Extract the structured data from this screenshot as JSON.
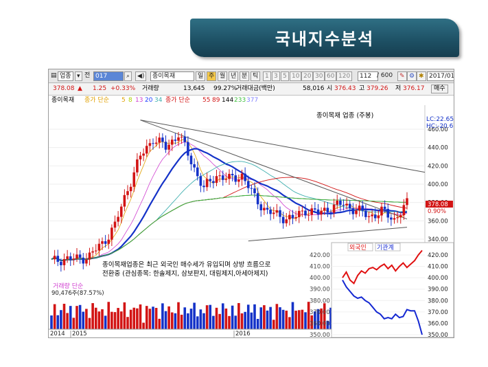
{
  "banner": {
    "title": "국내지수분석"
  },
  "toolbar": {
    "group_label": "업종",
    "prev_label": "전",
    "code": "017",
    "name": "종이목재",
    "period_buttons": [
      "일",
      "주",
      "월",
      "년",
      "분",
      "틱"
    ],
    "active_period": "주",
    "minute_buttons": [
      "1",
      "3",
      "5",
      "10",
      "20",
      "30",
      "60",
      "120"
    ],
    "count": "112",
    "total": "/ 600",
    "date": "2017/01/"
  },
  "quote": {
    "price": "378.08",
    "change": "1.25",
    "change_pct": "+0.33%",
    "volume_label": "거래량",
    "volume": "13,645",
    "volume_pct": "99.27%",
    "amount_label": "거래대금(백만)",
    "amount": "58,016",
    "open_label": "시",
    "open": "376.43",
    "high_label": "고",
    "high": "379.26",
    "low_label": "저",
    "low": "376.17",
    "order_button": "매수"
  },
  "ma_legend": {
    "name": "종이목재",
    "label1": "종가 단순",
    "periods1": [
      "5",
      "8",
      "13",
      "20",
      "34"
    ],
    "label2": "종가 단순",
    "periods2": [
      "55",
      "89",
      "144",
      "233",
      "377"
    ],
    "colors1": [
      "#e0a000",
      "#b0d000",
      "#d040d0",
      "#2040ff",
      "#40b0b0"
    ],
    "colors2": [
      "#d21414",
      "#d21414",
      "#000000",
      "#40c040",
      "#8080ff"
    ]
  },
  "chart_data": {
    "type": "line",
    "title": "종이목재 업종 (주봉)",
    "price_axis": {
      "ticks": [
        "460.00",
        "440.00",
        "420.00",
        "400.00",
        "380.00",
        "360.00",
        "340.00"
      ],
      "lc_label": "LC:22.65",
      "hc_label": "HC:-20.63",
      "last_price": "378.08",
      "last_pct": "0.90%"
    },
    "x_labels": [
      "2014",
      "2015",
      "2016"
    ],
    "price_series": {
      "x": [
        0,
        4,
        8,
        12,
        16,
        20,
        24,
        28,
        32,
        36,
        40,
        44,
        48,
        52,
        56,
        60,
        64,
        68,
        72,
        76,
        80,
        84,
        88,
        92,
        96,
        100,
        104,
        108,
        112
      ],
      "close": [
        315,
        319,
        318,
        322,
        335,
        355,
        395,
        430,
        450,
        440,
        455,
        425,
        395,
        410,
        405,
        410,
        385,
        370,
        365,
        362,
        372,
        368,
        375,
        378,
        372,
        365,
        370,
        362,
        378
      ]
    },
    "volume_pane": {
      "label": "거래량 단순",
      "value": "90,476주(87.57%)"
    },
    "annotation": "종이목재업종은 최근 외국인 매수세가 유입되며 상방 흐름으로 전환중 (관심종목: 한솔제지, 삼보판지, 대림제지,아세아제지)",
    "inset": {
      "legend": [
        "외국인",
        "기관계"
      ],
      "legend_colors": [
        "#e01010",
        "#1428d2"
      ],
      "ticks": [
        "420.00",
        "410.00",
        "400.00",
        "390.00",
        "380.00",
        "370.00",
        "360.00",
        "350.00"
      ],
      "left_ticks": [
        "420.00",
        "410.00",
        "400.00",
        "390.00",
        "380.00",
        "370.00",
        "360.00",
        "350.00"
      ],
      "series": [
        {
          "name": "외국인",
          "values": [
            400,
            405,
            398,
            395,
            402,
            406,
            404,
            408,
            409,
            407,
            410,
            412,
            408,
            411,
            406,
            410,
            413,
            409,
            412,
            415,
            420,
            424
          ]
        },
        {
          "name": "기관계",
          "values": [
            398,
            392,
            388,
            384,
            382,
            383,
            380,
            378,
            374,
            370,
            368,
            364,
            365,
            364,
            368,
            365,
            366,
            372,
            371,
            371,
            362,
            350
          ]
        }
      ]
    }
  }
}
